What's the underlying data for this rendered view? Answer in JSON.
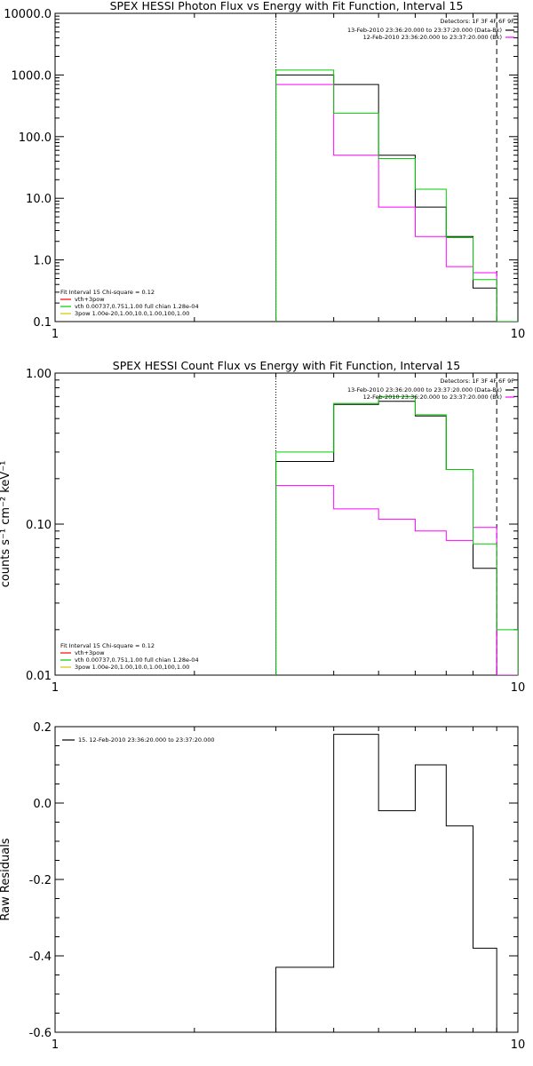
{
  "chart_data": [
    {
      "type": "line",
      "title": "SPEX HESSI Photon Flux vs Energy with Fit Function, Interval 15",
      "xlabel": "",
      "ylabel": "",
      "xscale": "log",
      "yscale": "log",
      "xlim": [
        1,
        10
      ],
      "ylim": [
        0.1,
        10000
      ],
      "x_ticks": [
        "1",
        "10"
      ],
      "y_ticks": [
        "0.1",
        "1.0",
        "10.0",
        "100.0",
        "1000.0",
        "10000.0"
      ],
      "energy_bins": [
        3,
        4,
        5,
        6,
        7,
        8,
        9,
        10
      ],
      "series": [
        {
          "name": "13-Feb-2010 23:36:20.000 to 23:37:20.000 (Data-Bk)",
          "color": "#000000",
          "values": [
            1000,
            700,
            50,
            7.2,
            2.4,
            0.35,
            0.0
          ]
        },
        {
          "name": "12-Feb-2010 23:36:20.000 to 23:37:20.000 (Bk)",
          "color": "#ff00ff",
          "values": [
            700,
            50,
            7.2,
            2.4,
            0.78,
            0.62,
            0.0
          ]
        },
        {
          "name": "vth 0.00737,0.751,1.00  full chian 1.28e-04",
          "color": "#00cc00",
          "values": [
            1200,
            240,
            44,
            14,
            2.3,
            0.48,
            0.1
          ]
        }
      ],
      "annotations": {
        "header": "Detectors: 1F 3F 4F 6F 9F",
        "fit_label": "Fit Interval 15   Chi-square = 0.12",
        "fit_items": [
          {
            "text": "vth+3pow",
            "color": "#ff0000"
          },
          {
            "text": "vth 0.00737,0.751,1.00  full chian 1.28e-04",
            "color": "#00cc00"
          },
          {
            "text": "3pow 1.00e-20,1.00,10.0,1.00,100,1.00",
            "color": "#cccc00"
          }
        ]
      },
      "vlines": [
        {
          "x": 3,
          "style": "dotted"
        },
        {
          "x": 9,
          "style": "dashed"
        }
      ],
      "grid": false
    },
    {
      "type": "line",
      "title": "SPEX HESSI Count Flux vs Energy with Fit Function, Interval 15",
      "xlabel": "",
      "ylabel": "counts s⁻¹ cm⁻² keV⁻¹",
      "xscale": "log",
      "yscale": "log",
      "xlim": [
        1,
        10
      ],
      "ylim": [
        0.01,
        1
      ],
      "x_ticks": [
        "1",
        "10"
      ],
      "y_ticks": [
        "0.01",
        "0.10",
        "1.00"
      ],
      "energy_bins": [
        3,
        4,
        5,
        6,
        7,
        8,
        9,
        10
      ],
      "series": [
        {
          "name": "13-Feb-2010 23:36:20.000 to 23:37:20.000 (Data-Bk)",
          "color": "#000000",
          "values": [
            0.26,
            0.62,
            0.65,
            0.52,
            0.23,
            0.051,
            0.0
          ]
        },
        {
          "name": "12-Feb-2010 23:36:20.000 to 23:37:20.000 (Bk)",
          "color": "#ff00ff",
          "values": [
            0.18,
            0.126,
            0.108,
            0.09,
            0.078,
            0.095,
            0.0
          ]
        },
        {
          "name": "vth 0.00737,0.751,1.00  full chian 1.28e-04",
          "color": "#00cc00",
          "values": [
            0.3,
            0.63,
            0.7,
            0.53,
            0.23,
            0.074,
            0.02
          ]
        }
      ],
      "annotations": {
        "header": "Detectors: 1F 3F 4F 6F 9F",
        "fit_label": "Fit Interval 15   Chi-square = 0.12",
        "fit_items": [
          {
            "text": "vth+3pow",
            "color": "#ff0000"
          },
          {
            "text": "vth 0.00737,0.751,1.00  full chian 1.28e-04",
            "color": "#00cc00"
          },
          {
            "text": "3pow 1.00e-20,1.00,10.0,1.00,100,1.00",
            "color": "#cccc00"
          }
        ]
      },
      "vlines": [
        {
          "x": 3,
          "style": "dotted"
        },
        {
          "x": 9,
          "style": "dashed"
        }
      ],
      "grid": false
    },
    {
      "type": "line",
      "title": "",
      "xlabel": "",
      "ylabel": "Raw Residuals",
      "xscale": "log",
      "yscale": "linear",
      "xlim": [
        1,
        10
      ],
      "ylim": [
        -0.6,
        0.2
      ],
      "x_ticks": [
        "1",
        "10"
      ],
      "y_ticks": [
        "-0.6",
        "-0.4",
        "-0.2",
        "0.0",
        "0.2"
      ],
      "energy_bins": [
        3,
        4,
        5,
        6,
        7,
        8,
        9
      ],
      "series": [
        {
          "name": "15. 12-Feb-2010 23:36:20.000 to 23:37:20.000",
          "color": "#000000",
          "values": [
            -0.43,
            0.18,
            -0.02,
            0.1,
            -0.06,
            -0.38
          ]
        }
      ],
      "grid": false
    }
  ]
}
